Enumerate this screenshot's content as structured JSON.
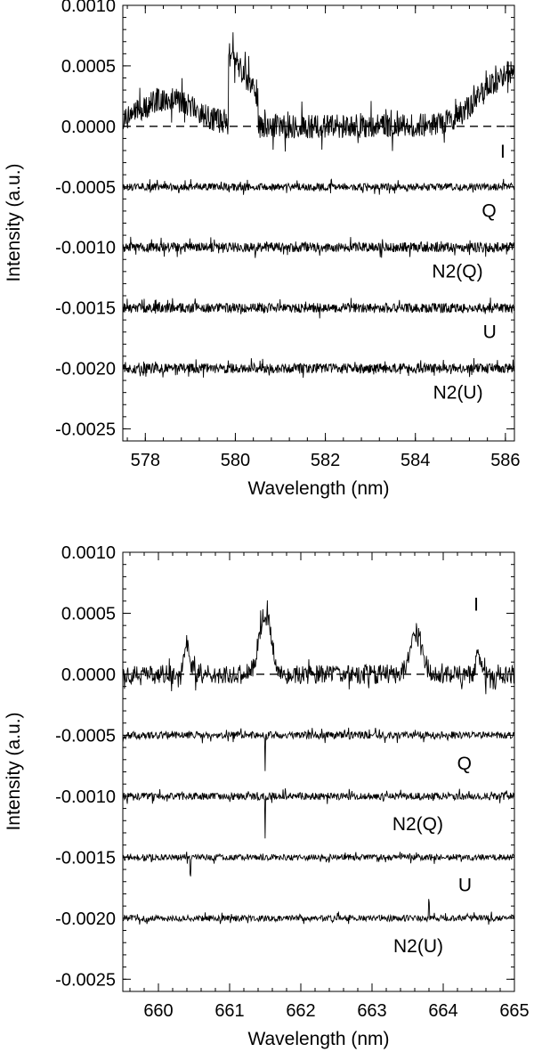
{
  "chart_data": [
    {
      "type": "line",
      "xlabel": "Wavelength (nm)",
      "ylabel": "Intensity (a.u.)",
      "xlim": [
        577.5,
        586.2
      ],
      "ylim": [
        -0.0026,
        0.001
      ],
      "x_ticks": [
        578,
        580,
        582,
        584,
        586
      ],
      "y_ticks": [
        0.001,
        0.0005,
        0.0,
        -0.0005,
        -0.001,
        -0.0015,
        -0.002,
        -0.0025
      ],
      "y_tick_labels": [
        "0.0010",
        "0.0005",
        "0.0000",
        "-0.0005",
        "-0.0010",
        "-0.0015",
        "-0.0020",
        "-0.0025"
      ],
      "zero_line": 0.0,
      "series": [
        {
          "name": "I",
          "offset": 0.0,
          "label_x": 586.0,
          "label_y": -0.00026,
          "noise": 0.0001,
          "features": [
            {
              "type": "step",
              "x0": 579.85,
              "x1": 580.5,
              "amp": 0.00062
            },
            {
              "type": "bump",
              "x": 578.5,
              "width": 0.9,
              "amp": 0.00022
            },
            {
              "type": "bump",
              "x": 586.2,
              "width": 1.0,
              "amp": 0.00045
            }
          ]
        },
        {
          "name": "Q",
          "offset": -0.0005,
          "label_x": 585.8,
          "label_y": -0.00075,
          "noise": 3e-05,
          "features": []
        },
        {
          "name": "N2(Q)",
          "offset": -0.001,
          "label_x": 585.5,
          "label_y": -0.00125,
          "noise": 4e-05,
          "features": []
        },
        {
          "name": "U",
          "offset": -0.0015,
          "label_x": 585.8,
          "label_y": -0.00175,
          "noise": 4e-05,
          "features": []
        },
        {
          "name": "N2(U)",
          "offset": -0.002,
          "label_x": 585.5,
          "label_y": -0.00225,
          "noise": 4e-05,
          "features": []
        }
      ]
    },
    {
      "type": "line",
      "xlabel": "Wavelength (nm)",
      "ylabel": "Intensity (a.u.)",
      "xlim": [
        659.5,
        665.0
      ],
      "ylim": [
        -0.0026,
        0.001
      ],
      "x_ticks": [
        660,
        661,
        662,
        663,
        664,
        665
      ],
      "y_ticks": [
        0.001,
        0.0005,
        0.0,
        -0.0005,
        -0.001,
        -0.0015,
        -0.002,
        -0.0025
      ],
      "y_tick_labels": [
        "0.0010",
        "0.0005",
        "0.0000",
        "-0.0005",
        "-0.0010",
        "-0.0015",
        "-0.0020",
        "-0.0025"
      ],
      "zero_line": 0.0,
      "series": [
        {
          "name": "I",
          "offset": 0.0,
          "label_x": 664.5,
          "label_y": 0.00052,
          "noise": 8e-05,
          "features": [
            {
              "type": "bump",
              "x": 661.5,
              "width": 0.12,
              "amp": 0.0005
            },
            {
              "type": "bump",
              "x": 663.62,
              "width": 0.12,
              "amp": 0.00032
            },
            {
              "type": "bump",
              "x": 660.4,
              "width": 0.06,
              "amp": 0.00025
            },
            {
              "type": "bump",
              "x": 664.5,
              "width": 0.05,
              "amp": 0.0002
            }
          ]
        },
        {
          "name": "Q",
          "offset": -0.0005,
          "label_x": 664.4,
          "label_y": -0.00078,
          "noise": 3e-05,
          "features": [
            {
              "type": "spike",
              "x": 661.5,
              "amp": -0.00032
            }
          ]
        },
        {
          "name": "N2(Q)",
          "offset": -0.001,
          "label_x": 664.0,
          "label_y": -0.00128,
          "noise": 3e-05,
          "features": [
            {
              "type": "spike",
              "x": 661.5,
              "amp": -0.00035
            }
          ]
        },
        {
          "name": "U",
          "offset": -0.0015,
          "label_x": 664.4,
          "label_y": -0.00178,
          "noise": 2.5e-05,
          "features": [
            {
              "type": "spike",
              "x": 660.45,
              "amp": -0.00015
            }
          ]
        },
        {
          "name": "N2(U)",
          "offset": -0.002,
          "label_x": 664.0,
          "label_y": -0.00228,
          "noise": 2.5e-05,
          "features": [
            {
              "type": "spike",
              "x": 663.8,
              "amp": 0.00015
            }
          ]
        }
      ]
    }
  ]
}
